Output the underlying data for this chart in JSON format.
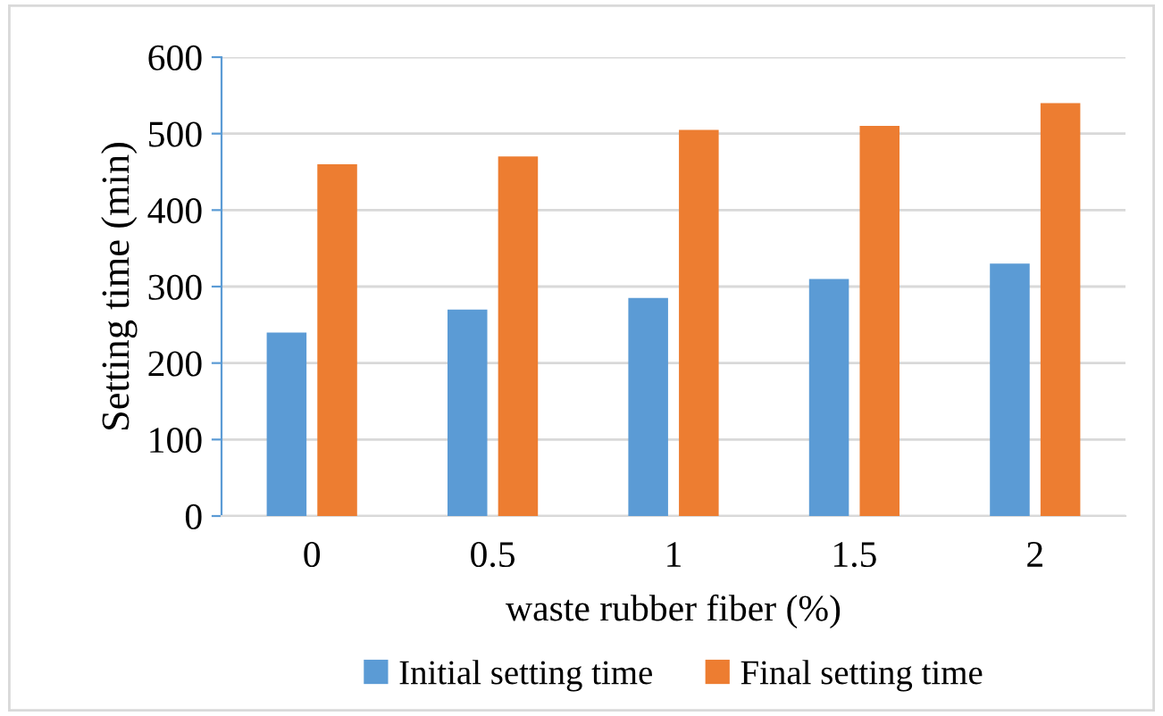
{
  "chart_data": {
    "type": "bar",
    "xlabel": "waste rubber fiber (%)",
    "ylabel": "Setting time (min)",
    "categories": [
      "0",
      "0.5",
      "1",
      "1.5",
      "2"
    ],
    "series": [
      {
        "name": "Initial setting time",
        "color": "#5b9bd5",
        "values": [
          240,
          270,
          285,
          310,
          330
        ]
      },
      {
        "name": "Final setting time",
        "color": "#ed7d31",
        "values": [
          460,
          470,
          505,
          510,
          540
        ]
      }
    ],
    "ylim": [
      0,
      600
    ],
    "yticks": [
      0,
      100,
      200,
      300,
      400,
      500,
      600
    ],
    "grid": "y",
    "legend": "bottom"
  }
}
